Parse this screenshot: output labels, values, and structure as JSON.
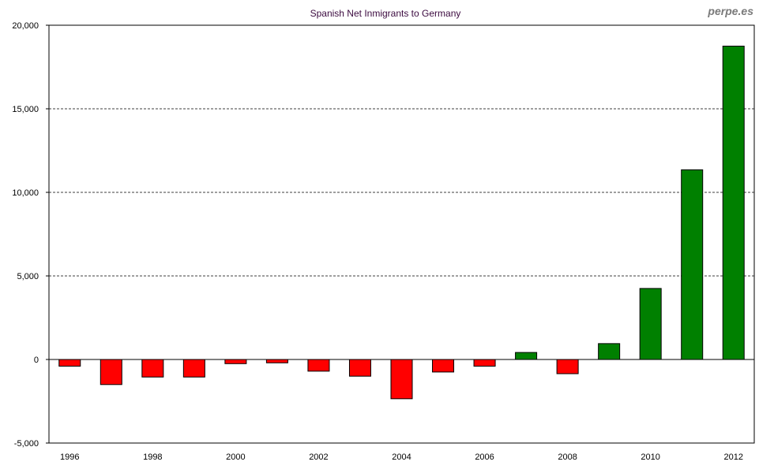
{
  "brand": "perpe.es",
  "chart_data": {
    "type": "bar",
    "title": "Spanish Net Inmigrants to Germany",
    "xlabel": "",
    "ylabel": "",
    "categories": [
      "1996",
      "1997",
      "1998",
      "1999",
      "2000",
      "2001",
      "2002",
      "2003",
      "2004",
      "2005",
      "2006",
      "2007",
      "2008",
      "2009",
      "2010",
      "2011",
      "2012"
    ],
    "values": [
      -400,
      -1500,
      -1050,
      -1050,
      -250,
      -200,
      -700,
      -1000,
      -2350,
      -750,
      -400,
      420,
      -850,
      950,
      4250,
      11350,
      18750
    ],
    "x_tick_labels": [
      "1996",
      "1998",
      "2000",
      "2002",
      "2004",
      "2006",
      "2008",
      "2010",
      "2012"
    ],
    "ylim": [
      -5000,
      20000
    ],
    "y_ticks": [
      -5000,
      0,
      5000,
      10000,
      15000,
      20000
    ],
    "y_tick_labels": [
      "-5,000",
      "0",
      "5,000",
      "10,000",
      "15,000",
      "20,000"
    ],
    "gridlines": [
      5000,
      10000,
      15000
    ],
    "grid": "horizontal-dashed",
    "colors": {
      "positive": "#008000",
      "negative": "#ff0000",
      "outline": "#000000"
    }
  }
}
